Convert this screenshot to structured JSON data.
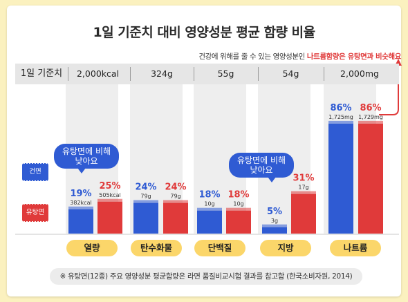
{
  "title": "1일 기준치 대비 영양성분 평균 함량 비율",
  "subtitle": {
    "prefix": "건강에 위해를 줄 수 있는 영양성분인 ",
    "highlight": "나트륨함량은 유탕면과 비슷해요"
  },
  "reference": {
    "label": "1일 기준치",
    "values": [
      "2,000kcal",
      "324g",
      "55g",
      "54g",
      "2,000mg"
    ]
  },
  "legend": [
    {
      "name": "건면",
      "color": "#2f5bd3"
    },
    {
      "name": "유탕면",
      "color": "#e03a3a"
    }
  ],
  "bubbles": [
    {
      "text_line1": "유탕면에 비해",
      "text_line2": "낮아요"
    },
    {
      "text_line1": "유탕면에 비해",
      "text_line2": "낮아요"
    }
  ],
  "chart_data": {
    "type": "bar",
    "categories": [
      "열량",
      "탄수화물",
      "단백질",
      "지방",
      "나트륨"
    ],
    "series": [
      {
        "name": "건면",
        "color": "#2f5bd3",
        "values": [
          19,
          24,
          18,
          5,
          86
        ],
        "value_labels": [
          "19%",
          "24%",
          "18%",
          "5%",
          "86%"
        ],
        "amounts": [
          "382kcal",
          "79g",
          "10g",
          "3g",
          "1,725mg"
        ]
      },
      {
        "name": "유탕면",
        "color": "#e03a3a",
        "values": [
          25,
          24,
          18,
          31,
          86
        ],
        "value_labels": [
          "25%",
          "24%",
          "18%",
          "31%",
          "86%"
        ],
        "amounts": [
          "505kcal",
          "79g",
          "10g",
          "17g",
          "1,729mg"
        ]
      }
    ],
    "ylim": [
      0,
      100
    ]
  },
  "footnote": "※ 유탕면(12종) 주요 영양성분 평균함량은 라면 품질비교시험 결과를 참고함 (한국소비자원, 2014)"
}
